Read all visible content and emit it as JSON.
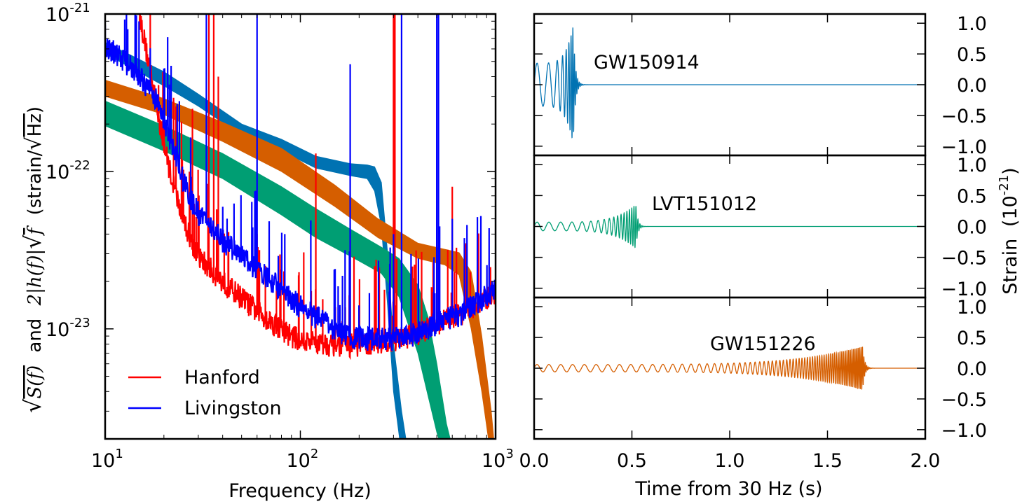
{
  "chart_data": [
    {
      "type": "line",
      "panel": "left",
      "scale": "log-log",
      "xlabel": "Frequency (Hz)",
      "ylabel_parts": {
        "sqrt_s": "S(f)",
        "and": "and",
        "two_h": "2|h(f)|",
        "sqrt_f": "f",
        "unit_open": "(strain/",
        "unit_hz": "Hz",
        "unit_close": ")"
      },
      "xlim": [
        10,
        1000
      ],
      "ylim": [
        2e-24,
        1e-21
      ],
      "x_ticks": [
        {
          "base": "10",
          "exp": "1",
          "value": 10
        },
        {
          "base": "10",
          "exp": "2",
          "value": 100
        },
        {
          "base": "10",
          "exp": "3",
          "value": 1000
        }
      ],
      "y_ticks": [
        {
          "base": "10",
          "exp": "-21",
          "value": 1e-21
        },
        {
          "base": "10",
          "exp": "-22",
          "value": 1e-22
        },
        {
          "base": "10",
          "exp": "-23",
          "value": 1e-23
        }
      ],
      "legend": {
        "placement": "lower-left",
        "entries": [
          {
            "label": "Hanford",
            "color": "#ff0000"
          },
          {
            "label": "Livingston",
            "color": "#0000ff"
          }
        ]
      },
      "bands": [
        {
          "name": "GW150914",
          "color": "#0072b2",
          "f": [
            10,
            20,
            30,
            50,
            80,
            120,
            180,
            220,
            240,
            260,
            280,
            300,
            330,
            360
          ],
          "upper": [
            6.6e-22,
            4.3e-22,
            3.1e-22,
            2e-22,
            1.6e-22,
            1.25e-22,
            1.12e-22,
            1.1e-22,
            1.07e-22,
            8.5e-23,
            3e-23,
            8e-24,
            3e-24,
            1.5e-24
          ],
          "lower": [
            5.6e-22,
            3.5e-22,
            2.6e-22,
            1.7e-22,
            1.35e-22,
            1.05e-22,
            9.4e-23,
            9e-23,
            7.5e-23,
            4.5e-23,
            1.4e-23,
            4e-24,
            1.6e-24,
            1e-24
          ]
        },
        {
          "name": "GW151226",
          "color": "#d55e00",
          "f": [
            10,
            20,
            40,
            80,
            150,
            250,
            400,
            550,
            650,
            750,
            850,
            950,
            1000
          ],
          "upper": [
            3.8e-22,
            2.9e-22,
            2.05e-22,
            1.4e-22,
            8.2e-23,
            5e-23,
            3.5e-23,
            3.2e-23,
            3.05e-23,
            2.3e-23,
            9e-24,
            3e-24,
            1.5e-24
          ],
          "lower": [
            3e-22,
            2.3e-22,
            1.55e-22,
            1e-22,
            6e-23,
            3.8e-23,
            2.8e-23,
            2.55e-23,
            2.2e-23,
            1e-23,
            4e-24,
            1.5e-24,
            1e-24
          ]
        },
        {
          "name": "LVT151012",
          "color": "#009e73",
          "f": [
            10,
            20,
            40,
            80,
            120,
            180,
            260,
            320,
            400,
            450,
            500,
            560,
            620
          ],
          "upper": [
            2.8e-22,
            1.95e-22,
            1.3e-22,
            8e-23,
            5.8e-23,
            4.3e-23,
            3.3e-23,
            2.8e-23,
            1.9e-23,
            1.2e-23,
            6e-24,
            2.5e-24,
            1.5e-24
          ],
          "lower": [
            1.95e-22,
            1.35e-22,
            9e-23,
            5.3e-23,
            3.8e-23,
            2.9e-23,
            2.25e-23,
            1.6e-23,
            7e-24,
            3.8e-24,
            2.2e-24,
            1.4e-24,
            1e-24
          ]
        }
      ],
      "series": [
        {
          "name": "Hanford",
          "color": "#ff0000",
          "baseline": {
            "f": [
              15,
              18,
              20,
              22,
              24,
              26,
              28,
              30,
              35,
              40,
              50,
              60,
              80,
              100,
              150,
              200,
              300,
              400,
              500,
              700,
              1000
            ],
            "asd": [
              1e-21,
              3e-22,
              1.5e-22,
              9e-23,
              6e-23,
              4.5e-23,
              3.5e-23,
              2.9e-23,
              2.4e-23,
              2e-23,
              1.6e-23,
              1.3e-23,
              1e-23,
              8.5e-24,
              8e-24,
              8e-24,
              8.5e-24,
              9.5e-24,
              1.1e-23,
              1.3e-23,
              1.7e-23
            ]
          },
          "lines": [
            [
              28,
              2.5e-22
            ],
            [
              34,
              1e-21
            ],
            [
              36,
              1e-21
            ],
            [
              38,
              4e-22
            ],
            [
              60,
              4e-23
            ],
            [
              120,
              1.3e-22
            ],
            [
              150,
              2e-23
            ],
            [
              180,
              4e-23
            ],
            [
              240,
              2.5e-23
            ],
            [
              300,
              1e-21
            ],
            [
              305,
              1e-21
            ],
            [
              500,
              3e-23
            ],
            [
              600,
              8e-23
            ]
          ]
        },
        {
          "name": "Livingston",
          "color": "#0000ff",
          "baseline": {
            "f": [
              10,
              14,
              18,
              20,
              22,
              25,
              28,
              30,
              35,
              40,
              50,
              60,
              80,
              100,
              150,
              200,
              300,
              400,
              500,
              700,
              1000
            ],
            "asd": [
              6.5e-22,
              4.5e-22,
              3e-22,
              2.2e-22,
              1.5e-22,
              9e-23,
              6.5e-23,
              5.5e-23,
              4.5e-23,
              3.7e-23,
              2.9e-23,
              2.4e-23,
              1.8e-23,
              1.4e-23,
              1e-23,
              8.8e-24,
              8.8e-24,
              9.5e-24,
              1.1e-23,
              1.3e-23,
              1.8e-23
            ]
          },
          "lines": [
            [
              33,
              1e-21
            ],
            [
              60,
              1e-21
            ],
            [
              180,
              4.8e-22
            ],
            [
              330,
              1e-21
            ],
            [
              500,
              1e-21
            ],
            [
              510,
              1e-21
            ],
            [
              20,
              4.5e-22
            ],
            [
              300,
              4e-23
            ],
            [
              600,
              5e-23
            ]
          ]
        }
      ]
    },
    {
      "type": "line",
      "panel": "right",
      "xlabel": "Time from 30 Hz (s)",
      "ylabel": "Strain",
      "ylabel_unit": {
        "open": "(10",
        "exp": "-21",
        "close": ")"
      },
      "xlim": [
        0.0,
        2.0
      ],
      "x_ticks": [
        "0.0",
        "0.5",
        "1.0",
        "1.5",
        "2.0"
      ],
      "y_ticks": [
        "1.0",
        "0.5",
        "0.0",
        "−0.5",
        "−1.0"
      ],
      "subplots": [
        {
          "name": "GW150914",
          "color": "#0072b2",
          "duration": 0.2,
          "ylim": [
            -1.15,
            1.15
          ],
          "amp_start": 0.35,
          "amp_peak": 0.95,
          "f_start": 30,
          "f_peak": 220
        },
        {
          "name": "LVT151012",
          "color": "#009e73",
          "duration": 0.52,
          "ylim": [
            -1.15,
            1.15
          ],
          "amp_start": 0.07,
          "amp_peak": 0.35,
          "f_start": 30,
          "f_peak": 180
        },
        {
          "name": "GW151226",
          "color": "#d55e00",
          "duration": 1.68,
          "ylim": [
            -1.15,
            1.15
          ],
          "amp_start": 0.06,
          "amp_peak": 0.35,
          "f_start": 30,
          "f_peak": 250
        }
      ]
    }
  ]
}
